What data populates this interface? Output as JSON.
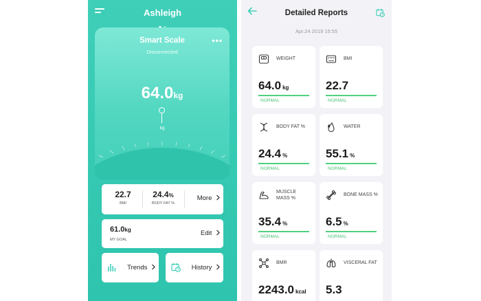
{
  "left": {
    "user_name": "Ashleigh",
    "scale": {
      "title": "Smart Scale",
      "more": "•••",
      "status": "Disconnected",
      "weight_value": "64.0",
      "weight_unit": "kg",
      "pointer_unit": "kg"
    },
    "stats": {
      "bmi_value": "22.7",
      "bmi_label": "BMI",
      "bodyfat_value": "24.4",
      "bodyfat_unit": "%",
      "bodyfat_label": "BODY FAT %",
      "more_label": "More"
    },
    "goal": {
      "value": "61.0",
      "unit": "kg",
      "label": "MY GOAL",
      "edit_label": "Edit"
    },
    "buttons": {
      "trends": "Trends",
      "history": "History"
    }
  },
  "right": {
    "title": "Detailed Reports",
    "date": "Apr.24 2019 15:55",
    "metrics": [
      {
        "name": "WEIGHT",
        "value": "64.0",
        "unit": "kg",
        "status": "NORMAL"
      },
      {
        "name": "BMI",
        "value": "22.7",
        "unit": "",
        "status": "NORMAL"
      },
      {
        "name": "BODY FAT %",
        "value": "24.4",
        "unit": "%",
        "status": "NORMAL"
      },
      {
        "name": "WATER",
        "value": "55.1",
        "unit": "%",
        "status": "NORMAL"
      },
      {
        "name_line1": "MUSCLE",
        "name_line2": "MASS %",
        "value": "35.4",
        "unit": "%",
        "status": "NORMAL"
      },
      {
        "name": "BONE MASS %",
        "value": "6.5",
        "unit": "%",
        "status": "NORMAL"
      },
      {
        "name": "BMR",
        "value": "2243.0",
        "unit": "kcal",
        "status": ""
      },
      {
        "name": "VISCERAL FAT",
        "value": "5.3",
        "unit": "",
        "status": ""
      }
    ]
  },
  "colors": {
    "teal": "#3fcfb9",
    "teal_dark": "#2fc3ac",
    "normal_green": "#4ed17e"
  },
  "icons": [
    "menu-icon",
    "more-dots-icon",
    "chevron-right-icon",
    "bar-chart-icon",
    "calendar-clock-icon",
    "back-arrow-icon",
    "scale-icon",
    "bmi-icon",
    "dna-icon",
    "water-drop-icon",
    "muscle-arm-icon",
    "bone-icon",
    "molecule-icon",
    "lungs-icon"
  ]
}
